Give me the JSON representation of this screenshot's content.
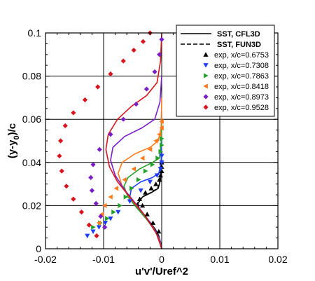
{
  "chart_data": {
    "type": "line",
    "xlabel": "u'v'/Uref^2",
    "ylabel_main": "(y-y",
    "ylabel_sub": "0",
    "ylabel_tail": ")/c",
    "xlim": [
      -0.02,
      0.02
    ],
    "ylim": [
      0,
      0.1
    ],
    "xticks": [
      -0.02,
      -0.01,
      0,
      0.01,
      0.02
    ],
    "xtick_labels": [
      "-0.02",
      "-0.01",
      "0",
      "0.01",
      "0.02"
    ],
    "yticks": [
      0,
      0.02,
      0.04,
      0.06,
      0.08,
      0.1
    ],
    "ytick_labels": [
      "0",
      "0.02",
      "0.04",
      "0.06",
      "0.08",
      "0.1"
    ],
    "grid": true,
    "legend_position": "top-right",
    "legend": [
      {
        "label": "SST, CFL3D",
        "style": "solid"
      },
      {
        "label": "SST, FUN3D",
        "style": "dashed"
      },
      {
        "label": "exp, x/c=0.6753",
        "marker": "triangle-up",
        "color": "#000000"
      },
      {
        "label": "exp, x/c=0.7308",
        "marker": "triangle-down",
        "color": "#1e3cff"
      },
      {
        "label": "exp, x/c=0.7863",
        "marker": "triangle-right",
        "color": "#22a02a"
      },
      {
        "label": "exp, x/c=0.8418",
        "marker": "triangle-left",
        "color": "#ff7a1c"
      },
      {
        "label": "exp, x/c=0.8973",
        "marker": "diamond",
        "color": "#7a1ec8"
      },
      {
        "label": "exp, x/c=0.9528",
        "marker": "diamond",
        "color": "#d8141e"
      }
    ],
    "series": [
      {
        "name": "SST, CFL3D",
        "station": "0.6753",
        "color": "#000000",
        "style": "solid",
        "x": [
          0.0,
          -0.0002,
          -0.0005,
          -0.0011,
          -0.0019,
          -0.0029,
          -0.0038,
          -0.0041,
          -0.0033,
          -0.0018,
          -0.0006,
          -0.0002,
          -0.0001,
          0.0
        ],
        "y": [
          0.0,
          0.003,
          0.006,
          0.009,
          0.012,
          0.015,
          0.018,
          0.021,
          0.024,
          0.026,
          0.028,
          0.032,
          0.038,
          0.045
        ]
      },
      {
        "name": "SST, FUN3D",
        "station": "0.6753",
        "color": "#000000",
        "style": "dashed",
        "x": [
          0.0,
          -0.0002,
          -0.0006,
          -0.0012,
          -0.002,
          -0.003,
          -0.0039,
          -0.0042,
          -0.0034,
          -0.0019,
          -0.0007,
          -0.0002,
          -0.0001,
          0.0
        ],
        "y": [
          0.0,
          0.003,
          0.006,
          0.009,
          0.012,
          0.015,
          0.018,
          0.021,
          0.024,
          0.026,
          0.028,
          0.032,
          0.038,
          0.045
        ]
      },
      {
        "name": "SST, CFL3D",
        "station": "0.7308",
        "color": "#1e3cff",
        "style": "solid",
        "x": [
          0.0,
          -0.0003,
          -0.001,
          -0.002,
          -0.0033,
          -0.0046,
          -0.0055,
          -0.0052,
          -0.0036,
          -0.0016,
          -0.0005,
          -0.0001,
          0.0
        ],
        "y": [
          0.0,
          0.004,
          0.008,
          0.012,
          0.016,
          0.02,
          0.024,
          0.028,
          0.031,
          0.033,
          0.035,
          0.04,
          0.05
        ]
      },
      {
        "name": "SST, CFL3D",
        "station": "0.7863",
        "color": "#22a02a",
        "style": "solid",
        "x": [
          0.0,
          -0.0004,
          -0.0013,
          -0.0027,
          -0.0043,
          -0.0058,
          -0.0065,
          -0.0058,
          -0.0038,
          -0.0016,
          -0.0004,
          -0.0001,
          0.0
        ],
        "y": [
          0.0,
          0.004,
          0.009,
          0.014,
          0.019,
          0.024,
          0.029,
          0.033,
          0.037,
          0.04,
          0.042,
          0.048,
          0.06
        ]
      },
      {
        "name": "SST, CFL3D",
        "station": "0.8418",
        "color": "#ff7a1c",
        "style": "solid",
        "x": [
          0.0,
          -0.0005,
          -0.0017,
          -0.0034,
          -0.0053,
          -0.0068,
          -0.0075,
          -0.0068,
          -0.0046,
          -0.002,
          -0.0006,
          -0.0001,
          0.0
        ],
        "y": [
          0.0,
          0.005,
          0.011,
          0.017,
          0.023,
          0.029,
          0.035,
          0.04,
          0.044,
          0.047,
          0.05,
          0.056,
          0.07
        ]
      },
      {
        "name": "SST, CFL3D",
        "station": "0.8973",
        "color": "#7a1ec8",
        "style": "solid",
        "x": [
          0.0,
          -0.0007,
          -0.0022,
          -0.0042,
          -0.0063,
          -0.008,
          -0.0088,
          -0.0084,
          -0.0064,
          -0.0034,
          -0.0012,
          -0.0003,
          0.0
        ],
        "y": [
          0.0,
          0.006,
          0.013,
          0.02,
          0.027,
          0.034,
          0.041,
          0.047,
          0.052,
          0.056,
          0.06,
          0.068,
          0.08
        ]
      },
      {
        "name": "SST, CFL3D",
        "station": "0.9528",
        "color": "#d8141e",
        "style": "solid",
        "x": [
          0.0,
          -0.0009,
          -0.0028,
          -0.0052,
          -0.0076,
          -0.009,
          -0.0096,
          -0.0092,
          -0.0076,
          -0.0052,
          -0.0026,
          -0.0008,
          -0.0002,
          0.0
        ],
        "y": [
          0.0,
          0.007,
          0.015,
          0.023,
          0.031,
          0.038,
          0.046,
          0.053,
          0.06,
          0.066,
          0.071,
          0.077,
          0.087,
          0.1
        ]
      },
      {
        "name": "exp, x/c=0.6753",
        "color": "#000000",
        "marker": "triangle-up",
        "x": [
          -0.0005,
          -0.0015,
          -0.0025,
          -0.0033,
          -0.0038,
          -0.0028,
          -0.0018,
          -0.001,
          -0.0004,
          -0.0002,
          0.0,
          0.0,
          0.0
        ],
        "y": [
          0.008,
          0.012,
          0.016,
          0.02,
          0.023,
          0.026,
          0.028,
          0.03,
          0.032,
          0.034,
          0.036,
          0.038,
          0.04
        ]
      },
      {
        "name": "exp, x/c=0.7308",
        "color": "#1e3cff",
        "marker": "triangle-down",
        "x": [
          -0.0128,
          -0.0118,
          -0.0108,
          -0.0097,
          -0.0088,
          -0.0075,
          -0.0055,
          -0.0036,
          -0.002,
          -0.0008,
          -0.0002,
          0.0,
          0.0
        ],
        "y": [
          0.006,
          0.008,
          0.01,
          0.012,
          0.014,
          0.017,
          0.022,
          0.027,
          0.031,
          0.034,
          0.037,
          0.04,
          0.043
        ]
      },
      {
        "name": "exp, x/c=0.7863",
        "color": "#22a02a",
        "marker": "triangle-right",
        "x": [
          -0.0118,
          -0.0106,
          -0.0094,
          -0.0083,
          -0.0072,
          -0.0062,
          -0.0052,
          -0.004,
          -0.0028,
          -0.0016,
          -0.0007,
          -0.0002,
          0.0,
          0.0
        ],
        "y": [
          0.01,
          0.012,
          0.014,
          0.017,
          0.02,
          0.024,
          0.028,
          0.032,
          0.036,
          0.039,
          0.042,
          0.045,
          0.048,
          0.051
        ]
      },
      {
        "name": "exp, x/c=0.8418",
        "color": "#ff7a1c",
        "marker": "triangle-left",
        "x": [
          -0.0108,
          -0.0103,
          -0.0098,
          -0.0088,
          -0.0078,
          -0.0064,
          -0.0048,
          -0.0033,
          -0.002,
          -0.001,
          -0.0004,
          0.0,
          0.0
        ],
        "y": [
          0.012,
          0.016,
          0.02,
          0.024,
          0.028,
          0.032,
          0.037,
          0.042,
          0.046,
          0.05,
          0.053,
          0.056,
          0.059
        ]
      },
      {
        "name": "exp, x/c=0.8973",
        "color": "#7a1ec8",
        "marker": "diamond",
        "x": [
          -0.0098,
          -0.0105,
          -0.0113,
          -0.012,
          -0.0122,
          -0.0118,
          -0.0107,
          -0.0088,
          -0.0066,
          -0.0044,
          -0.0026,
          -0.0012,
          -0.0004,
          0.0
        ],
        "y": [
          0.01,
          0.015,
          0.021,
          0.027,
          0.033,
          0.039,
          0.046,
          0.053,
          0.06,
          0.067,
          0.074,
          0.082,
          0.09,
          0.097
        ]
      },
      {
        "name": "exp, x/c=0.9528",
        "color": "#d8141e",
        "marker": "diamond",
        "x": [
          -0.0112,
          -0.0125,
          -0.0138,
          -0.0152,
          -0.0164,
          -0.0172,
          -0.0176,
          -0.0174,
          -0.0166,
          -0.0152,
          -0.0132,
          -0.011,
          -0.0088,
          -0.0066,
          -0.0048,
          -0.0032,
          -0.002
        ],
        "y": [
          0.006,
          0.011,
          0.017,
          0.023,
          0.029,
          0.036,
          0.043,
          0.05,
          0.057,
          0.063,
          0.069,
          0.075,
          0.081,
          0.087,
          0.092,
          0.096,
          0.1
        ]
      }
    ]
  }
}
